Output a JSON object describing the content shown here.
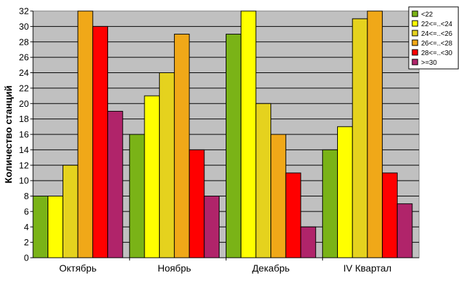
{
  "chart_data": {
    "type": "bar",
    "categories": [
      "Октябрь",
      "Ноябрь",
      "Декабрь",
      "IV Квартал"
    ],
    "series": [
      {
        "name": "<22",
        "color": "#7ab317",
        "values": [
          8,
          16,
          29,
          14
        ]
      },
      {
        "name": "22<=..<24",
        "color": "#ffff00",
        "values": [
          8,
          21,
          32,
          17
        ]
      },
      {
        "name": "24<=..<26",
        "color": "#e5d21e",
        "values": [
          12,
          24,
          20,
          31
        ]
      },
      {
        "name": "26<=..<28",
        "color": "#f0a818",
        "values": [
          32,
          29,
          16,
          32
        ]
      },
      {
        "name": "28<=..<30",
        "color": "#ff0000",
        "values": [
          30,
          14,
          11,
          11
        ]
      },
      {
        "name": ">=30",
        "color": "#b0246a",
        "values": [
          19,
          8,
          4,
          7
        ]
      }
    ],
    "title": "",
    "xlabel": "",
    "ylabel": "Количество станций",
    "ylim": [
      0,
      32
    ],
    "yticks": [
      0,
      2,
      4,
      6,
      8,
      10,
      12,
      14,
      16,
      18,
      20,
      22,
      24,
      26,
      28,
      30,
      32
    ],
    "grid": true,
    "legend": "top-right",
    "plot_background": "#c0c0c0"
  }
}
